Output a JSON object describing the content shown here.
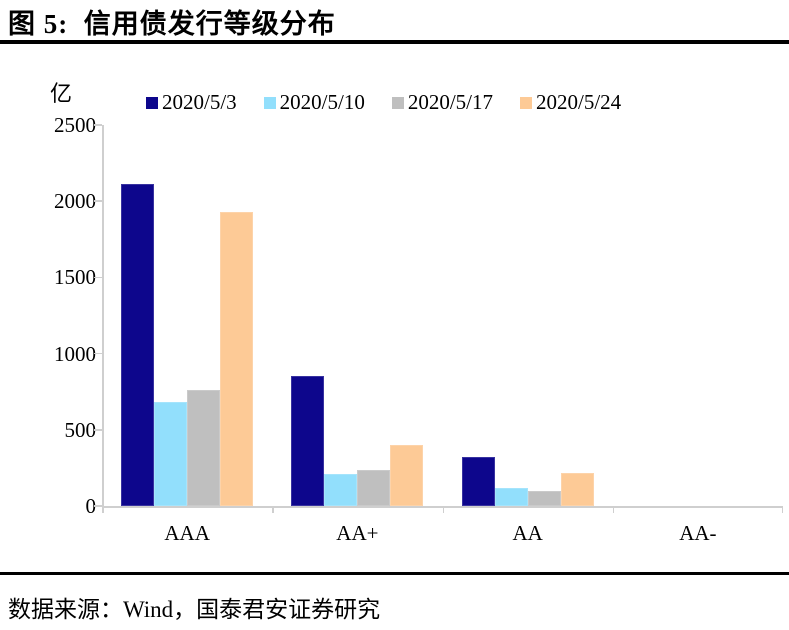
{
  "header": {
    "title": "图 5:  信用债发行等级分布"
  },
  "chart": {
    "unit_label": "亿"
  },
  "chart_data": {
    "type": "bar",
    "title": "信用债发行等级分布",
    "ylabel": "亿",
    "xlabel": "",
    "categories": [
      "AAA",
      "AA+",
      "AA",
      "AA-"
    ],
    "series": [
      {
        "name": "2020/5/3",
        "color": "#0d068c",
        "values": [
          2110,
          855,
          320,
          0
        ]
      },
      {
        "name": "2020/5/10",
        "color": "#92dffc",
        "values": [
          680,
          210,
          120,
          0
        ]
      },
      {
        "name": "2020/5/17",
        "color": "#bfbfbf",
        "values": [
          760,
          235,
          100,
          0
        ]
      },
      {
        "name": "2020/5/24",
        "color": "#fdca96",
        "values": [
          1930,
          400,
          215,
          0
        ]
      }
    ],
    "ylim": [
      0,
      2500
    ],
    "yticks": [
      0,
      500,
      1000,
      1500,
      2000,
      2500
    ],
    "grid": false,
    "legend_position": "top",
    "axis_color": "#cfcfcf"
  },
  "footer": {
    "source": "数据来源：Wind，国泰君安证券研究"
  }
}
